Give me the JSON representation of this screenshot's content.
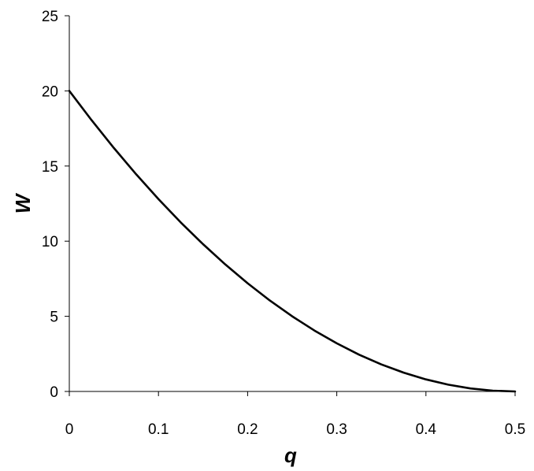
{
  "chart_data": {
    "type": "line",
    "title": "",
    "xlabel": "q",
    "ylabel": "W",
    "xlim": [
      0,
      0.5
    ],
    "ylim": [
      0,
      25
    ],
    "xticks": [
      "0",
      "0.1",
      "0.2",
      "0.3",
      "0.4",
      "0.5"
    ],
    "yticks": [
      "0",
      "5",
      "10",
      "15",
      "20",
      "25"
    ],
    "grid": false,
    "legend": "none",
    "line_color": "#000000",
    "series": [
      {
        "x": [
          0,
          0.025,
          0.05,
          0.075,
          0.1,
          0.125,
          0.15,
          0.175,
          0.2,
          0.225,
          0.25,
          0.275,
          0.3,
          0.325,
          0.35,
          0.375,
          0.4,
          0.425,
          0.45,
          0.475,
          0.5
        ],
        "values": [
          20.0,
          18.05,
          16.2,
          14.45,
          12.8,
          11.25,
          9.8,
          8.45,
          7.2,
          6.05,
          5.0,
          4.05,
          3.2,
          2.45,
          1.8,
          1.25,
          0.8,
          0.45,
          0.2,
          0.05,
          0.0
        ]
      }
    ]
  }
}
